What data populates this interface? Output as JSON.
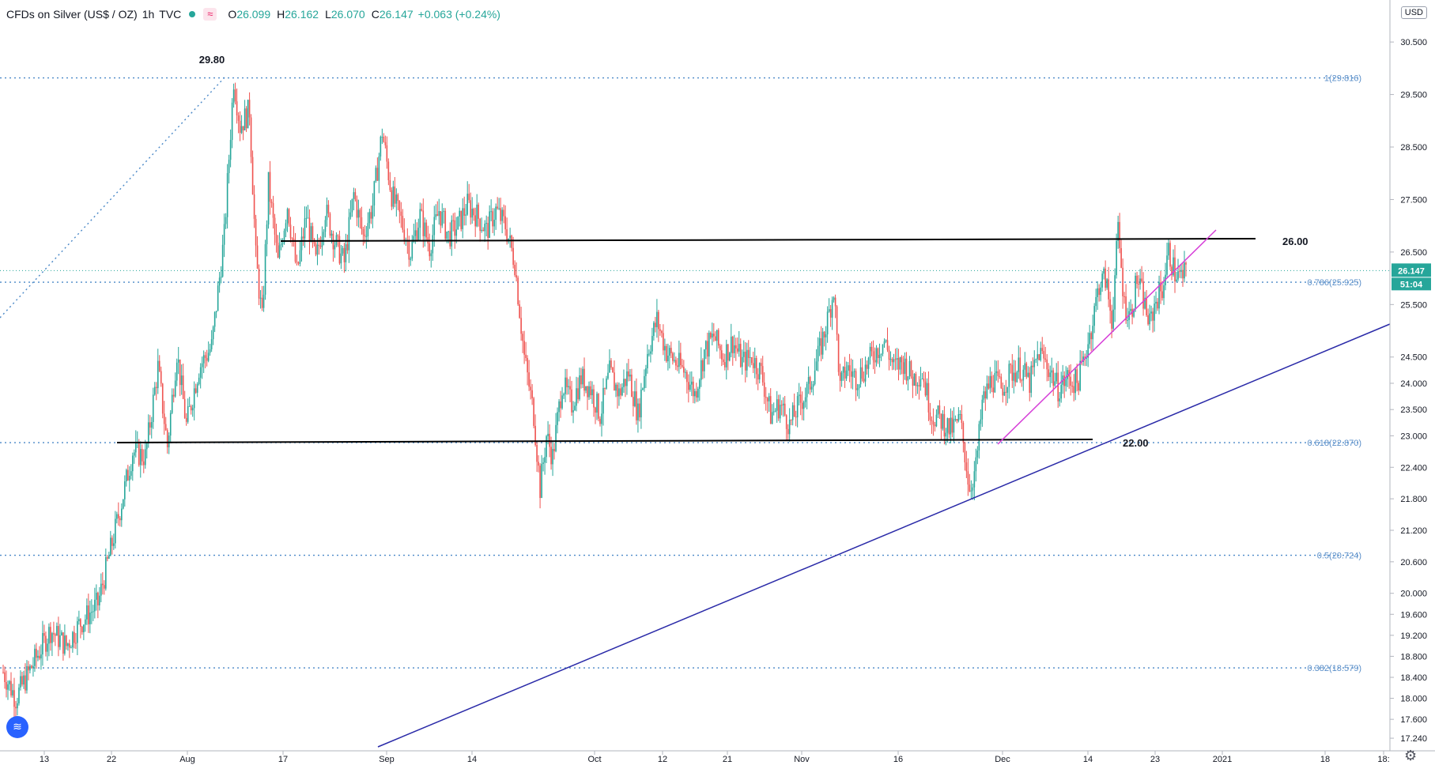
{
  "header": {
    "symbol": "CFDs on Silver (US$ / OZ)",
    "interval": "1h",
    "source": "TVC",
    "compare_icon": "≈",
    "open_label": "O",
    "open": "26.099",
    "high_label": "H",
    "high": "26.162",
    "low_label": "L",
    "low": "26.070",
    "close_label": "C",
    "close": "26.147",
    "change": "+0.063 (+0.24%)"
  },
  "currency_button": "USD",
  "chart_data": {
    "type": "candlestick",
    "interval": "1h",
    "ylim": [
      17.0,
      31.3
    ],
    "y_ticks": [
      "30.500",
      "29.500",
      "28.500",
      "27.500",
      "26.500",
      "25.500",
      "24.500",
      "24.000",
      "23.500",
      "23.000",
      "22.400",
      "21.800",
      "21.200",
      "20.600",
      "20.000",
      "19.600",
      "19.200",
      "18.800",
      "18.400",
      "18.000",
      "17.600",
      "17.240"
    ],
    "x_ticks": [
      "13",
      "22",
      "Aug",
      "17",
      "Sep",
      "14",
      "Oct",
      "12",
      "21",
      "Nov",
      "16",
      "Dec",
      "14",
      "23",
      "2021",
      "18",
      "18:"
    ],
    "last_price": "26.147",
    "countdown": "51:04",
    "price_path": [
      [
        0,
        18.5
      ],
      [
        8,
        18.0
      ],
      [
        18,
        18.6
      ],
      [
        30,
        19.3
      ],
      [
        40,
        19.0
      ],
      [
        48,
        19.4
      ],
      [
        60,
        19.8
      ],
      [
        74,
        21.6
      ],
      [
        82,
        22.7
      ],
      [
        90,
        22.6
      ],
      [
        98,
        24.3
      ],
      [
        104,
        22.8
      ],
      [
        110,
        24.6
      ],
      [
        116,
        23.2
      ],
      [
        124,
        24.3
      ],
      [
        132,
        24.7
      ],
      [
        140,
        26.8
      ],
      [
        146,
        29.8
      ],
      [
        150,
        28.9
      ],
      [
        156,
        29.2
      ],
      [
        160,
        26.4
      ],
      [
        164,
        25.2
      ],
      [
        168,
        27.8
      ],
      [
        174,
        26.3
      ],
      [
        180,
        27.4
      ],
      [
        186,
        26.1
      ],
      [
        192,
        27.2
      ],
      [
        198,
        26.3
      ],
      [
        204,
        27.3
      ],
      [
        210,
        26.7
      ],
      [
        216,
        26.3
      ],
      [
        222,
        27.6
      ],
      [
        228,
        26.8
      ],
      [
        234,
        27.4
      ],
      [
        240,
        28.8
      ],
      [
        246,
        27.6
      ],
      [
        252,
        27.1
      ],
      [
        258,
        26.5
      ],
      [
        264,
        27.2
      ],
      [
        270,
        26.6
      ],
      [
        276,
        27.3
      ],
      [
        282,
        26.8
      ],
      [
        288,
        27.0
      ],
      [
        294,
        27.4
      ],
      [
        300,
        27.2
      ],
      [
        306,
        26.9
      ],
      [
        312,
        27.3
      ],
      [
        318,
        27.0
      ],
      [
        324,
        26.3
      ],
      [
        330,
        24.5
      ],
      [
        336,
        23.4
      ],
      [
        340,
        22.0
      ],
      [
        344,
        23.0
      ],
      [
        348,
        22.6
      ],
      [
        354,
        24.0
      ],
      [
        360,
        23.6
      ],
      [
        366,
        24.1
      ],
      [
        372,
        23.9
      ],
      [
        378,
        23.4
      ],
      [
        384,
        24.2
      ],
      [
        390,
        23.8
      ],
      [
        396,
        24.2
      ],
      [
        402,
        23.4
      ],
      [
        408,
        24.6
      ],
      [
        414,
        25.2
      ],
      [
        420,
        24.6
      ],
      [
        426,
        24.4
      ],
      [
        432,
        24.2
      ],
      [
        438,
        23.8
      ],
      [
        444,
        24.6
      ],
      [
        450,
        24.9
      ],
      [
        456,
        24.5
      ],
      [
        462,
        24.8
      ],
      [
        468,
        24.4
      ],
      [
        474,
        24.5
      ],
      [
        480,
        24.2
      ],
      [
        486,
        23.4
      ],
      [
        492,
        23.6
      ],
      [
        498,
        23.2
      ],
      [
        504,
        23.6
      ],
      [
        510,
        23.9
      ],
      [
        516,
        24.5
      ],
      [
        522,
        25.2
      ],
      [
        526,
        25.8
      ],
      [
        530,
        23.9
      ],
      [
        534,
        24.3
      ],
      [
        540,
        24.1
      ],
      [
        546,
        24.3
      ],
      [
        552,
        24.6
      ],
      [
        558,
        24.8
      ],
      [
        564,
        24.3
      ],
      [
        570,
        24.4
      ],
      [
        576,
        24.1
      ],
      [
        582,
        24.2
      ],
      [
        588,
        23.4
      ],
      [
        594,
        23.3
      ],
      [
        600,
        23.1
      ],
      [
        606,
        23.3
      ],
      [
        612,
        22.0
      ],
      [
        616,
        22.4
      ],
      [
        620,
        23.6
      ],
      [
        626,
        24.1
      ],
      [
        632,
        23.9
      ],
      [
        638,
        24.2
      ],
      [
        644,
        24.3
      ],
      [
        650,
        24.0
      ],
      [
        656,
        24.6
      ],
      [
        662,
        24.3
      ],
      [
        668,
        23.9
      ],
      [
        674,
        24.1
      ],
      [
        680,
        24.0
      ],
      [
        684,
        24.4
      ],
      [
        690,
        25.2
      ],
      [
        694,
        25.9
      ],
      [
        698,
        26.0
      ],
      [
        702,
        25.2
      ],
      [
        706,
        26.9
      ],
      [
        710,
        25.5
      ],
      [
        714,
        25.3
      ],
      [
        718,
        26.0
      ],
      [
        722,
        25.6
      ],
      [
        726,
        25.1
      ],
      [
        730,
        25.6
      ],
      [
        734,
        25.8
      ],
      [
        738,
        26.5
      ],
      [
        742,
        26.1
      ],
      [
        746,
        26.0
      ],
      [
        750,
        26.147
      ]
    ]
  },
  "annotations": {
    "high_label": "29.80",
    "resistance_label": "26.00",
    "support_label": "22.00"
  },
  "fib_levels": [
    {
      "label": "1(29.816)",
      "price": 29.816
    },
    {
      "label": "0.786(25.925)",
      "price": 25.925
    },
    {
      "label": "0.618(22.870)",
      "price": 22.87
    },
    {
      "label": "0.5(20.724)",
      "price": 20.724
    },
    {
      "label": "0.382(18.579)",
      "price": 18.579
    }
  ],
  "colors": {
    "up": "#26a69a",
    "down": "#ef5350",
    "fib": "#4a88c7",
    "support_resistance": "#000000",
    "long_trendline": "#2a2aa8",
    "short_trendline": "#d63fd8",
    "price_badge": "#26a69a",
    "fib_label": "#5b8fc9"
  }
}
